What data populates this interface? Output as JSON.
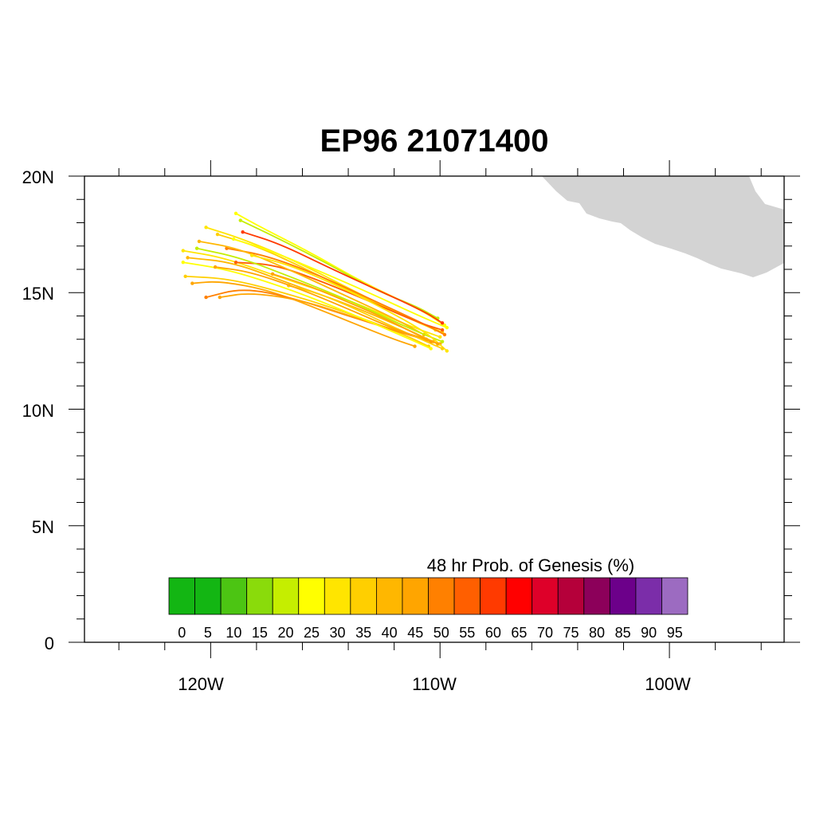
{
  "title": "EP96 21071400",
  "x_tick_labels": [
    "120W",
    "110W",
    "100W"
  ],
  "y_tick_labels": [
    "0",
    "5N",
    "10N",
    "15N",
    "20N"
  ],
  "colorbar": {
    "title": "48 hr Prob. of Genesis (%)",
    "labels": [
      "0",
      "5",
      "10",
      "15",
      "20",
      "25",
      "30",
      "35",
      "40",
      "45",
      "50",
      "55",
      "60",
      "65",
      "70",
      "75",
      "80",
      "85",
      "90",
      "95"
    ],
    "colors": [
      "#13b613",
      "#13b613",
      "#4cc513",
      "#8adb0b",
      "#c5ee00",
      "#ffff00",
      "#ffe500",
      "#ffcf00",
      "#ffb700",
      "#ffa500",
      "#ff8000",
      "#ff5f00",
      "#ff3a00",
      "#ff0000",
      "#de0029",
      "#b5003a",
      "#8c005a",
      "#6c008a",
      "#7b2da9",
      "#9c6bc1"
    ]
  },
  "land_color": "#d3d3d3",
  "chart_data": {
    "type": "map",
    "title": "EP96 21071400",
    "lon_range": [
      -125.5,
      -95
    ],
    "lat_range": [
      0,
      20
    ],
    "tracks": [
      {
        "color": "#ffe500",
        "points": [
          [
            -121.2,
            16.8
          ],
          [
            -119.4,
            16.5
          ],
          [
            -116.8,
            15.6
          ],
          [
            -114.0,
            14.7
          ],
          [
            -111.4,
            13.6
          ],
          [
            -110.0,
            13.1
          ]
        ]
      },
      {
        "color": "#ffb700",
        "points": [
          [
            -121.0,
            16.5
          ],
          [
            -119.0,
            16.3
          ],
          [
            -116.6,
            15.4
          ],
          [
            -114.0,
            14.5
          ],
          [
            -111.6,
            13.5
          ],
          [
            -110.3,
            12.9
          ]
        ]
      },
      {
        "color": "#ffcf00",
        "points": [
          [
            -121.1,
            15.7
          ],
          [
            -119.2,
            15.6
          ],
          [
            -116.8,
            15.0
          ],
          [
            -114.2,
            14.2
          ],
          [
            -111.8,
            13.3
          ],
          [
            -110.5,
            12.7
          ]
        ]
      },
      {
        "color": "#ffa500",
        "points": [
          [
            -120.8,
            15.4
          ],
          [
            -119.6,
            15.5
          ],
          [
            -117.4,
            15.1
          ],
          [
            -114.8,
            14.1
          ],
          [
            -112.3,
            13.1
          ],
          [
            -111.1,
            12.7
          ]
        ]
      },
      {
        "color": "#ff8000",
        "points": [
          [
            -120.2,
            14.8
          ],
          [
            -118.6,
            15.2
          ],
          [
            -116.5,
            14.8
          ],
          [
            -114.0,
            14.0
          ],
          [
            -111.4,
            13.2
          ],
          [
            -110.4,
            12.9
          ]
        ]
      },
      {
        "color": "#ffa500",
        "points": [
          [
            -119.6,
            14.8
          ],
          [
            -118.3,
            15.0
          ],
          [
            -116.1,
            14.7
          ],
          [
            -113.6,
            13.9
          ],
          [
            -111.0,
            13.1
          ],
          [
            -110.0,
            12.8
          ]
        ]
      },
      {
        "color": "#ffff00",
        "points": [
          [
            -118.9,
            18.4
          ],
          [
            -117.8,
            17.8
          ],
          [
            -115.6,
            16.7
          ],
          [
            -113.3,
            15.4
          ],
          [
            -110.9,
            14.3
          ],
          [
            -109.8,
            13.6
          ]
        ]
      },
      {
        "color": "#c5ee00",
        "points": [
          [
            -118.7,
            18.1
          ],
          [
            -117.2,
            17.4
          ],
          [
            -115.0,
            16.3
          ],
          [
            -112.8,
            15.1
          ],
          [
            -111.0,
            14.4
          ],
          [
            -110.1,
            13.9
          ]
        ]
      },
      {
        "color": "#ffe500",
        "points": [
          [
            -120.2,
            17.8
          ],
          [
            -118.6,
            17.3
          ],
          [
            -116.4,
            16.4
          ],
          [
            -114.0,
            15.2
          ],
          [
            -111.6,
            14.0
          ],
          [
            -110.2,
            13.4
          ]
        ]
      },
      {
        "color": "#ffcf00",
        "points": [
          [
            -119.7,
            17.5
          ],
          [
            -118.0,
            17.0
          ],
          [
            -115.8,
            16.0
          ],
          [
            -113.6,
            14.9
          ],
          [
            -111.3,
            13.9
          ],
          [
            -109.9,
            13.3
          ]
        ]
      },
      {
        "color": "#ff8000",
        "points": [
          [
            -119.3,
            16.9
          ],
          [
            -117.6,
            16.6
          ],
          [
            -115.4,
            15.8
          ],
          [
            -113.2,
            14.8
          ],
          [
            -111.0,
            13.8
          ],
          [
            -109.8,
            13.2
          ]
        ]
      },
      {
        "color": "#ff5f00",
        "points": [
          [
            -118.9,
            16.3
          ],
          [
            -117.2,
            16.2
          ],
          [
            -115.2,
            15.5
          ],
          [
            -113.0,
            14.6
          ],
          [
            -110.9,
            13.7
          ],
          [
            -109.9,
            13.4
          ]
        ]
      },
      {
        "color": "#ffb700",
        "points": [
          [
            -120.5,
            17.2
          ],
          [
            -118.8,
            16.9
          ],
          [
            -116.6,
            16.0
          ],
          [
            -114.4,
            15.0
          ],
          [
            -112.0,
            13.9
          ],
          [
            -110.7,
            13.2
          ]
        ]
      },
      {
        "color": "#ffff00",
        "points": [
          [
            -121.2,
            16.3
          ],
          [
            -119.3,
            16.0
          ],
          [
            -117.0,
            15.3
          ],
          [
            -114.6,
            14.4
          ],
          [
            -112.0,
            13.3
          ],
          [
            -110.4,
            12.6
          ]
        ]
      },
      {
        "color": "#c5ee00",
        "points": [
          [
            -120.6,
            16.9
          ],
          [
            -118.7,
            16.5
          ],
          [
            -116.3,
            15.6
          ],
          [
            -113.8,
            14.6
          ],
          [
            -111.2,
            13.4
          ],
          [
            -109.9,
            12.9
          ]
        ]
      },
      {
        "color": "#ffe500",
        "points": [
          [
            -118.2,
            16.6
          ],
          [
            -116.6,
            16.2
          ],
          [
            -114.7,
            15.4
          ],
          [
            -112.6,
            14.4
          ],
          [
            -110.6,
            13.3
          ],
          [
            -109.7,
            12.5
          ]
        ]
      },
      {
        "color": "#ffa500",
        "points": [
          [
            -117.3,
            15.8
          ],
          [
            -116.0,
            15.4
          ],
          [
            -114.5,
            14.8
          ],
          [
            -112.6,
            14.0
          ],
          [
            -110.8,
            13.1
          ],
          [
            -110.1,
            12.8
          ]
        ]
      },
      {
        "color": "#ffcf00",
        "points": [
          [
            -116.6,
            15.3
          ],
          [
            -115.4,
            15.0
          ],
          [
            -113.9,
            14.4
          ],
          [
            -112.2,
            13.6
          ],
          [
            -110.6,
            12.9
          ],
          [
            -109.9,
            12.6
          ]
        ]
      },
      {
        "color": "#ffff00",
        "points": [
          [
            -119.0,
            17.3
          ],
          [
            -117.4,
            16.8
          ],
          [
            -115.2,
            15.9
          ],
          [
            -113.1,
            15.0
          ],
          [
            -110.9,
            14.0
          ],
          [
            -109.7,
            13.5
          ]
        ]
      },
      {
        "color": "#ff3a00",
        "points": [
          [
            -118.6,
            17.6
          ],
          [
            -117.0,
            17.1
          ],
          [
            -114.9,
            16.1
          ],
          [
            -112.7,
            15.1
          ],
          [
            -110.7,
            14.2
          ],
          [
            -109.9,
            13.7
          ]
        ]
      },
      {
        "color": "#ffa500",
        "points": [
          [
            -119.8,
            16.1
          ],
          [
            -118.3,
            15.9
          ],
          [
            -116.2,
            15.2
          ],
          [
            -114.0,
            14.3
          ],
          [
            -111.9,
            13.4
          ],
          [
            -110.6,
            13.0
          ]
        ]
      }
    ]
  }
}
